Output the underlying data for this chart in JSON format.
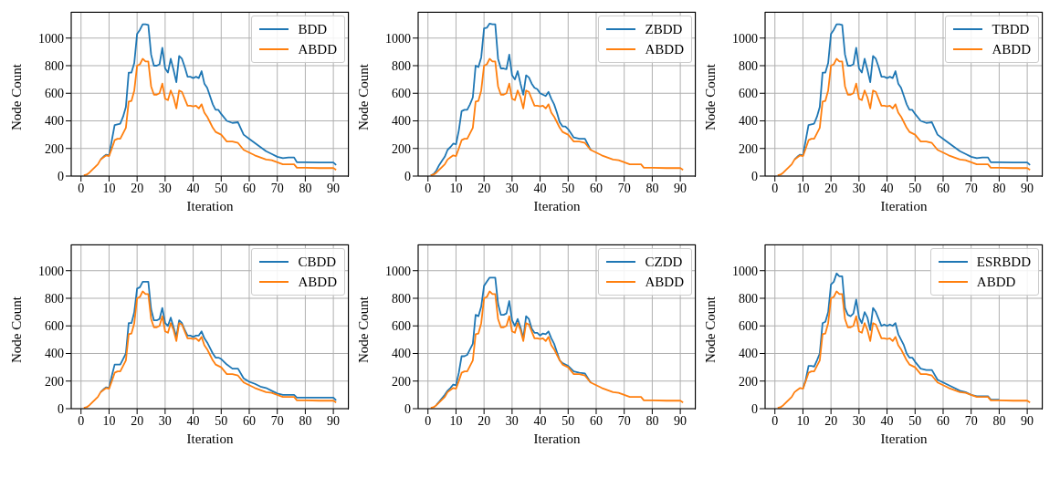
{
  "chart_data": [
    {
      "type": "line",
      "xlabel": "Iteration",
      "ylabel": "Node Count",
      "x": [
        1,
        2,
        3,
        4,
        5,
        6,
        7,
        8,
        9,
        10,
        11,
        12,
        13,
        14,
        15,
        16,
        17,
        18,
        19,
        20,
        21,
        22,
        23,
        24,
        25,
        26,
        27,
        28,
        29,
        30,
        31,
        32,
        33,
        34,
        35,
        36,
        37,
        38,
        39,
        40,
        41,
        42,
        43,
        44,
        45,
        46,
        47,
        48,
        49,
        50,
        52,
        54,
        56,
        58,
        60,
        62,
        64,
        66,
        68,
        70,
        72,
        74,
        76,
        77,
        80,
        85,
        90,
        91
      ],
      "xlim": [
        -3.5,
        95.5
      ],
      "xticks": [
        0,
        10,
        20,
        30,
        40,
        50,
        60,
        70,
        80,
        90
      ],
      "ylim": [
        0,
        1190
      ],
      "yticks": [
        0,
        200,
        400,
        600,
        800,
        1000
      ],
      "grid": true,
      "legend": "top right",
      "series": [
        {
          "name": "BDD",
          "color": "#1f77b4",
          "values": [
            null,
            null,
            null,
            null,
            null,
            null,
            120,
            140,
            155,
            150,
            260,
            370,
            375,
            380,
            430,
            500,
            750,
            750,
            820,
            1030,
            1060,
            1100,
            1100,
            1095,
            880,
            800,
            800,
            810,
            930,
            780,
            750,
            850,
            770,
            680,
            870,
            850,
            790,
            720,
            720,
            710,
            720,
            710,
            760,
            670,
            640,
            580,
            520,
            480,
            480,
            450,
            400,
            385,
            390,
            300,
            270,
            240,
            210,
            180,
            160,
            140,
            130,
            135,
            135,
            100,
            100,
            98,
            98,
            80
          ]
        },
        {
          "name": "ABDD",
          "color": "#ff7f0e",
          "values": [
            5,
            10,
            25,
            45,
            65,
            85,
            120,
            135,
            150,
            145,
            200,
            260,
            270,
            270,
            310,
            350,
            540,
            545,
            620,
            800,
            810,
            850,
            830,
            830,
            650,
            590,
            590,
            600,
            670,
            560,
            550,
            620,
            570,
            490,
            620,
            610,
            560,
            510,
            510,
            505,
            510,
            490,
            520,
            460,
            430,
            390,
            350,
            320,
            310,
            300,
            250,
            250,
            240,
            190,
            170,
            150,
            135,
            120,
            115,
            100,
            85,
            85,
            85,
            60,
            60,
            58,
            58,
            45
          ]
        }
      ]
    },
    {
      "type": "line",
      "xlabel": "Iteration",
      "ylabel": "Node Count",
      "x": [
        1,
        2,
        3,
        4,
        5,
        6,
        7,
        8,
        9,
        10,
        11,
        12,
        13,
        14,
        15,
        16,
        17,
        18,
        19,
        20,
        21,
        22,
        23,
        24,
        25,
        26,
        27,
        28,
        29,
        30,
        31,
        32,
        33,
        34,
        35,
        36,
        37,
        38,
        39,
        40,
        41,
        42,
        43,
        44,
        45,
        46,
        47,
        48,
        49,
        50,
        52,
        54,
        56,
        58,
        60,
        62,
        64,
        66,
        68,
        70,
        72,
        74,
        76,
        77,
        80,
        85,
        90,
        91
      ],
      "xlim": [
        -3.5,
        95.5
      ],
      "xticks": [
        0,
        10,
        20,
        30,
        40,
        50,
        60,
        70,
        80,
        90
      ],
      "ylim": [
        0,
        1190
      ],
      "yticks": [
        0,
        200,
        400,
        600,
        800,
        1000
      ],
      "grid": true,
      "legend": "top right",
      "series": [
        {
          "name": "ZBDD",
          "color": "#1f77b4",
          "values": [
            5,
            15,
            40,
            80,
            110,
            140,
            190,
            210,
            235,
            230,
            330,
            470,
            480,
            480,
            520,
            570,
            800,
            790,
            860,
            1070,
            1075,
            1105,
            1100,
            1100,
            850,
            780,
            780,
            775,
            880,
            730,
            700,
            760,
            670,
            590,
            730,
            715,
            670,
            640,
            630,
            600,
            590,
            580,
            610,
            560,
            520,
            460,
            390,
            360,
            360,
            340,
            280,
            270,
            270,
            190,
            null,
            null,
            null,
            null,
            null,
            null,
            null,
            null,
            null,
            null,
            null,
            null,
            null,
            null
          ]
        },
        {
          "name": "ABDD",
          "color": "#ff7f0e",
          "values": [
            5,
            10,
            25,
            45,
            65,
            85,
            120,
            135,
            150,
            145,
            200,
            260,
            270,
            270,
            310,
            350,
            540,
            545,
            620,
            800,
            810,
            850,
            830,
            830,
            650,
            590,
            590,
            600,
            670,
            560,
            550,
            620,
            570,
            490,
            620,
            610,
            560,
            510,
            510,
            505,
            510,
            490,
            520,
            460,
            430,
            390,
            350,
            320,
            310,
            300,
            250,
            250,
            240,
            190,
            170,
            150,
            135,
            120,
            115,
            100,
            85,
            85,
            85,
            60,
            60,
            58,
            58,
            45
          ]
        }
      ]
    },
    {
      "type": "line",
      "xlabel": "Iteration",
      "ylabel": "Node Count",
      "x": [
        1,
        2,
        3,
        4,
        5,
        6,
        7,
        8,
        9,
        10,
        11,
        12,
        13,
        14,
        15,
        16,
        17,
        18,
        19,
        20,
        21,
        22,
        23,
        24,
        25,
        26,
        27,
        28,
        29,
        30,
        31,
        32,
        33,
        34,
        35,
        36,
        37,
        38,
        39,
        40,
        41,
        42,
        43,
        44,
        45,
        46,
        47,
        48,
        49,
        50,
        52,
        54,
        56,
        58,
        60,
        62,
        64,
        66,
        68,
        70,
        72,
        74,
        76,
        77,
        80,
        85,
        90,
        91
      ],
      "xlim": [
        -3.5,
        95.5
      ],
      "xticks": [
        0,
        10,
        20,
        30,
        40,
        50,
        60,
        70,
        80,
        90
      ],
      "ylim": [
        0,
        1190
      ],
      "yticks": [
        0,
        200,
        400,
        600,
        800,
        1000
      ],
      "grid": true,
      "legend": "top right",
      "series": [
        {
          "name": "TBDD",
          "color": "#1f77b4",
          "values": [
            null,
            null,
            null,
            null,
            null,
            null,
            120,
            140,
            155,
            150,
            260,
            370,
            375,
            380,
            430,
            500,
            750,
            750,
            820,
            1030,
            1060,
            1100,
            1100,
            1095,
            880,
            800,
            800,
            810,
            930,
            780,
            750,
            850,
            770,
            680,
            870,
            850,
            790,
            720,
            720,
            710,
            720,
            710,
            760,
            670,
            640,
            580,
            520,
            480,
            480,
            450,
            400,
            385,
            390,
            300,
            270,
            240,
            210,
            180,
            160,
            140,
            130,
            135,
            135,
            100,
            100,
            98,
            98,
            80
          ]
        },
        {
          "name": "ABDD",
          "color": "#ff7f0e",
          "values": [
            5,
            10,
            25,
            45,
            65,
            85,
            120,
            135,
            150,
            145,
            200,
            260,
            270,
            270,
            310,
            350,
            540,
            545,
            620,
            800,
            810,
            850,
            830,
            830,
            650,
            590,
            590,
            600,
            670,
            560,
            550,
            620,
            570,
            490,
            620,
            610,
            560,
            510,
            510,
            505,
            510,
            490,
            520,
            460,
            430,
            390,
            350,
            320,
            310,
            300,
            250,
            250,
            240,
            190,
            170,
            150,
            135,
            120,
            115,
            100,
            85,
            85,
            85,
            60,
            60,
            58,
            58,
            45
          ]
        }
      ]
    },
    {
      "type": "line",
      "xlabel": "Iteration",
      "ylabel": "Node Count",
      "x": [
        1,
        2,
        3,
        4,
        5,
        6,
        7,
        8,
        9,
        10,
        11,
        12,
        13,
        14,
        15,
        16,
        17,
        18,
        19,
        20,
        21,
        22,
        23,
        24,
        25,
        26,
        27,
        28,
        29,
        30,
        31,
        32,
        33,
        34,
        35,
        36,
        37,
        38,
        39,
        40,
        41,
        42,
        43,
        44,
        45,
        46,
        47,
        48,
        49,
        50,
        52,
        54,
        56,
        58,
        60,
        62,
        64,
        66,
        68,
        70,
        72,
        74,
        76,
        77,
        80,
        85,
        90,
        91
      ],
      "xlim": [
        -3.5,
        95.5
      ],
      "xticks": [
        0,
        10,
        20,
        30,
        40,
        50,
        60,
        70,
        80,
        90
      ],
      "ylim": [
        0,
        1190
      ],
      "yticks": [
        0,
        200,
        400,
        600,
        800,
        1000
      ],
      "grid": true,
      "legend": "top right",
      "series": [
        {
          "name": "CBDD",
          "color": "#1f77b4",
          "values": [
            null,
            null,
            null,
            null,
            null,
            null,
            120,
            140,
            155,
            150,
            240,
            320,
            320,
            320,
            360,
            400,
            620,
            620,
            700,
            870,
            880,
            920,
            920,
            920,
            720,
            640,
            640,
            650,
            730,
            620,
            600,
            660,
            590,
            520,
            640,
            620,
            570,
            530,
            530,
            520,
            530,
            530,
            560,
            510,
            480,
            440,
            400,
            370,
            370,
            360,
            320,
            290,
            290,
            220,
            195,
            180,
            160,
            150,
            130,
            110,
            100,
            100,
            100,
            80,
            80,
            80,
            80,
            60
          ]
        },
        {
          "name": "ABDD",
          "color": "#ff7f0e",
          "values": [
            5,
            10,
            25,
            45,
            65,
            85,
            120,
            135,
            150,
            145,
            200,
            260,
            270,
            270,
            310,
            350,
            540,
            545,
            620,
            800,
            810,
            850,
            830,
            830,
            650,
            590,
            590,
            600,
            670,
            560,
            550,
            620,
            570,
            490,
            620,
            610,
            560,
            510,
            510,
            505,
            510,
            490,
            520,
            460,
            430,
            390,
            350,
            320,
            310,
            300,
            250,
            250,
            240,
            190,
            170,
            150,
            135,
            120,
            115,
            100,
            85,
            85,
            85,
            60,
            60,
            58,
            58,
            45
          ]
        }
      ]
    },
    {
      "type": "line",
      "xlabel": "Iteration",
      "ylabel": "Node Count",
      "x": [
        1,
        2,
        3,
        4,
        5,
        6,
        7,
        8,
        9,
        10,
        11,
        12,
        13,
        14,
        15,
        16,
        17,
        18,
        19,
        20,
        21,
        22,
        23,
        24,
        25,
        26,
        27,
        28,
        29,
        30,
        31,
        32,
        33,
        34,
        35,
        36,
        37,
        38,
        39,
        40,
        41,
        42,
        43,
        44,
        45,
        46,
        47,
        48,
        49,
        50,
        52,
        54,
        56,
        58,
        60,
        62,
        64,
        66,
        68,
        70,
        72,
        74,
        76,
        77,
        80,
        85,
        90,
        91
      ],
      "xlim": [
        -3.5,
        95.5
      ],
      "xticks": [
        0,
        10,
        20,
        30,
        40,
        50,
        60,
        70,
        80,
        90
      ],
      "ylim": [
        0,
        1190
      ],
      "yticks": [
        0,
        200,
        400,
        600,
        800,
        1000
      ],
      "grid": true,
      "legend": "top right",
      "series": [
        {
          "name": "CZDD",
          "color": "#1f77b4",
          "values": [
            null,
            null,
            28,
            50,
            75,
            100,
            130,
            150,
            175,
            170,
            260,
            380,
            380,
            390,
            430,
            470,
            680,
            670,
            740,
            890,
            920,
            950,
            950,
            950,
            760,
            680,
            680,
            690,
            780,
            640,
            600,
            650,
            590,
            510,
            670,
            650,
            580,
            550,
            550,
            530,
            545,
            540,
            560,
            510,
            470,
            410,
            350,
            330,
            320,
            310,
            270,
            260,
            255,
            190,
            null,
            null,
            null,
            null,
            null,
            null,
            null,
            null,
            null,
            null,
            null,
            null,
            null,
            null
          ]
        },
        {
          "name": "ABDD",
          "color": "#ff7f0e",
          "values": [
            5,
            10,
            25,
            45,
            65,
            85,
            120,
            135,
            150,
            145,
            200,
            260,
            270,
            270,
            310,
            350,
            540,
            545,
            620,
            800,
            810,
            850,
            830,
            830,
            650,
            590,
            590,
            600,
            670,
            560,
            550,
            620,
            570,
            490,
            620,
            610,
            560,
            510,
            510,
            505,
            510,
            490,
            520,
            460,
            430,
            390,
            350,
            320,
            310,
            300,
            250,
            250,
            240,
            190,
            170,
            150,
            135,
            120,
            115,
            100,
            85,
            85,
            85,
            60,
            60,
            58,
            58,
            45
          ]
        }
      ]
    },
    {
      "type": "line",
      "xlabel": "Iteration",
      "ylabel": "Node Count",
      "x": [
        1,
        2,
        3,
        4,
        5,
        6,
        7,
        8,
        9,
        10,
        11,
        12,
        13,
        14,
        15,
        16,
        17,
        18,
        19,
        20,
        21,
        22,
        23,
        24,
        25,
        26,
        27,
        28,
        29,
        30,
        31,
        32,
        33,
        34,
        35,
        36,
        37,
        38,
        39,
        40,
        41,
        42,
        43,
        44,
        45,
        46,
        47,
        48,
        49,
        50,
        52,
        54,
        56,
        58,
        60,
        62,
        64,
        66,
        68,
        70,
        72,
        74,
        76,
        77,
        80,
        85,
        90,
        91
      ],
      "xlim": [
        -3.5,
        95.5
      ],
      "xticks": [
        0,
        10,
        20,
        30,
        40,
        50,
        60,
        70,
        80,
        90
      ],
      "ylim": [
        0,
        1190
      ],
      "yticks": [
        0,
        200,
        400,
        600,
        800,
        1000
      ],
      "grid": true,
      "legend": "top right",
      "series": [
        {
          "name": "ESRBDD",
          "color": "#1f77b4",
          "values": [
            null,
            null,
            null,
            null,
            null,
            null,
            null,
            null,
            null,
            145,
            210,
            310,
            310,
            305,
            350,
            400,
            620,
            630,
            700,
            900,
            920,
            980,
            960,
            960,
            730,
            680,
            670,
            690,
            790,
            660,
            620,
            700,
            660,
            570,
            730,
            700,
            650,
            600,
            610,
            600,
            610,
            600,
            620,
            540,
            500,
            460,
            400,
            370,
            370,
            340,
            290,
            280,
            280,
            210,
            190,
            170,
            150,
            130,
            120,
            100,
            90,
            90,
            90,
            65,
            65,
            null,
            null,
            null
          ]
        },
        {
          "name": "ABDD",
          "color": "#ff7f0e",
          "values": [
            5,
            10,
            25,
            45,
            65,
            85,
            120,
            135,
            150,
            145,
            200,
            260,
            270,
            270,
            310,
            350,
            540,
            545,
            620,
            800,
            810,
            850,
            830,
            830,
            650,
            590,
            590,
            600,
            670,
            560,
            550,
            620,
            570,
            490,
            620,
            610,
            560,
            510,
            510,
            505,
            510,
            490,
            520,
            460,
            430,
            390,
            350,
            320,
            310,
            300,
            250,
            250,
            240,
            190,
            170,
            150,
            135,
            120,
            115,
            100,
            85,
            85,
            85,
            60,
            60,
            58,
            58,
            45
          ]
        }
      ]
    }
  ]
}
